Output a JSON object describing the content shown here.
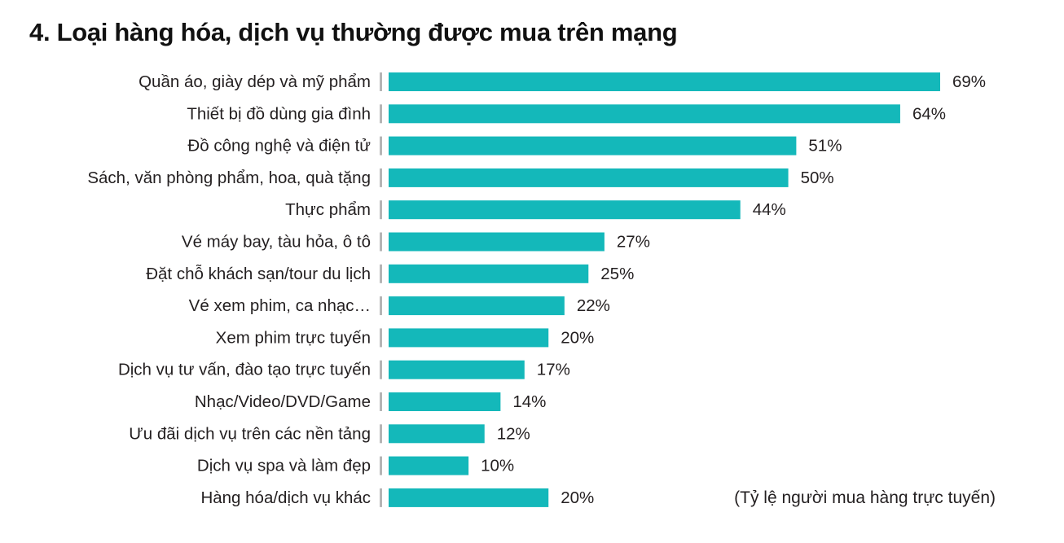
{
  "chart_data": {
    "type": "bar",
    "orientation": "horizontal",
    "title": "4. Loại hàng hóa, dịch vụ thường được mua trên mạng",
    "note": "(Tỷ lệ người mua hàng trực tuyến)",
    "unit": "%",
    "categories": [
      "Quần áo, giày dép và mỹ phẩm",
      "Thiết bị đồ dùng gia đình",
      "Đồ công nghệ và điện tử",
      "Sách, văn phòng phẩm, hoa, quà tặng",
      "Thực phẩm",
      "Vé máy bay, tàu hỏa, ô tô",
      "Đặt chỗ khách sạn/tour du lịch",
      "Vé xem phim, ca nhạc…",
      "Xem phim trực tuyến",
      "Dịch vụ tư vấn, đào tạo trực tuyến",
      "Nhạc/Video/DVD/Game",
      "Ưu đãi dịch vụ trên các nền tảng",
      "Dịch vụ spa và làm đẹp",
      "Hàng hóa/dịch vụ khác"
    ],
    "values": [
      69,
      64,
      51,
      50,
      44,
      27,
      25,
      22,
      20,
      17,
      14,
      12,
      10,
      20
    ],
    "value_labels": [
      "69%",
      "64%",
      "51%",
      "50%",
      "44%",
      "27%",
      "25%",
      "22%",
      "20%",
      "17%",
      "14%",
      "12%",
      "10%",
      "20%"
    ],
    "xlim": [
      0,
      69
    ],
    "grid": false,
    "legend": "none",
    "colors": {
      "bar": "#14b8ba",
      "axis_tick": "#b5b5b5",
      "text": "#231f20"
    }
  }
}
